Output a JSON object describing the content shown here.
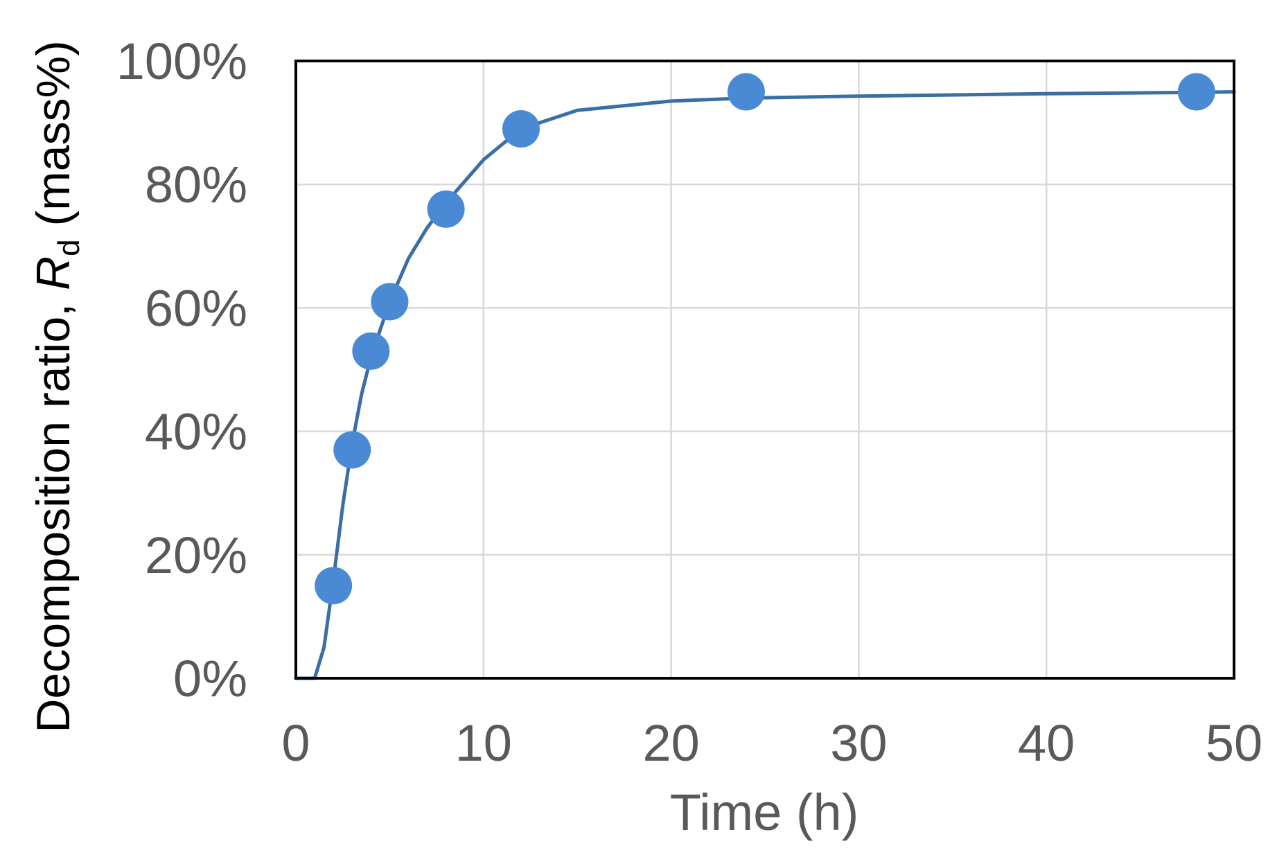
{
  "chart_data": {
    "type": "scatter",
    "xlabel": "Time (h)",
    "ylabel": {
      "prefix": "Decomposition ratio, ",
      "symbol": "R",
      "subscript": "d",
      "suffix": " (mass%)"
    },
    "xlim": [
      0,
      50
    ],
    "ylim": [
      0,
      100
    ],
    "x_ticks": [
      0,
      10,
      20,
      30,
      40,
      50
    ],
    "y_ticks": [
      0,
      20,
      40,
      60,
      80,
      100
    ],
    "x_tick_labels": [
      "0",
      "10",
      "20",
      "30",
      "40",
      "50"
    ],
    "y_tick_labels": [
      "0%",
      "20%",
      "40%",
      "60%",
      "80%",
      "100%"
    ],
    "grid": true,
    "series": [
      {
        "kind": "points",
        "color": "#4a8ad4",
        "x": [
          2,
          3,
          4,
          5,
          8,
          12,
          24,
          48
        ],
        "y": [
          15,
          37,
          53,
          61,
          76,
          89,
          95,
          95
        ]
      },
      {
        "kind": "fit_line",
        "color": "#3a6ea5",
        "x": [
          0,
          1,
          1.5,
          2,
          2.5,
          3,
          3.5,
          4,
          5,
          6,
          7,
          8,
          10,
          12,
          15,
          20,
          24,
          30,
          40,
          48,
          50
        ],
        "y": [
          0,
          0,
          5,
          16,
          28,
          38,
          46,
          52,
          61,
          68,
          73,
          77,
          84,
          89,
          92,
          93.5,
          94,
          94.3,
          94.7,
          94.9,
          95
        ]
      }
    ]
  },
  "colors": {
    "grid": "#d9d9d9",
    "frame": "#000000",
    "tick_text": "#595959"
  }
}
